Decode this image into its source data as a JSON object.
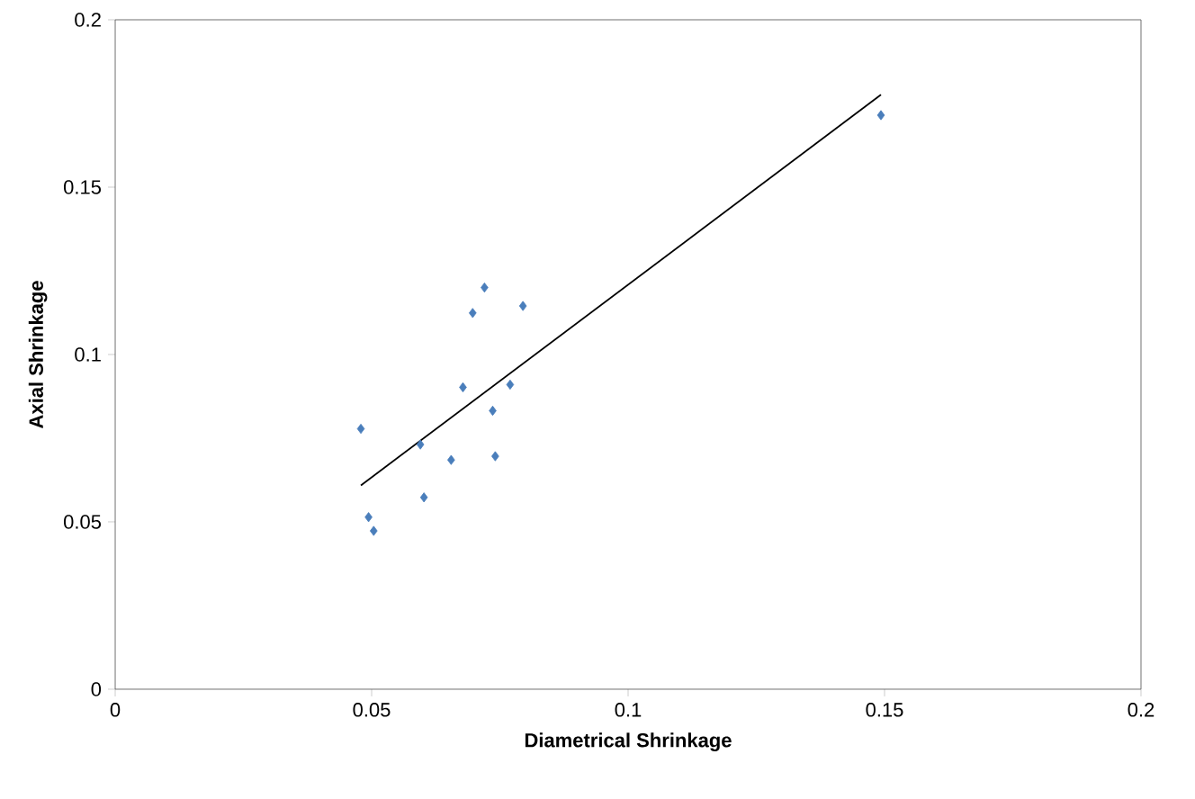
{
  "chart_data": {
    "type": "scatter",
    "xlabel": "Diametrical Shrinkage",
    "ylabel": "Axial Shrinkage",
    "xlim": [
      0,
      0.2
    ],
    "ylim": [
      0,
      0.2
    ],
    "xticks": [
      0,
      0.05,
      0.1,
      0.15,
      0.2
    ],
    "yticks": [
      0,
      0.05,
      0.1,
      0.15,
      0.2
    ],
    "grid": false,
    "series": [
      {
        "color": "#4a7ebb",
        "marker": "diamond",
        "x": [
          0.072,
          0.0697,
          0.0795,
          0.0678,
          0.077,
          0.0736,
          0.0479,
          0.0595,
          0.0655,
          0.0741,
          0.0602,
          0.0494,
          0.0504,
          0.1493
        ],
        "values": [
          0.12,
          0.1124,
          0.1145,
          0.0902,
          0.091,
          0.0832,
          0.0778,
          0.0731,
          0.0685,
          0.0696,
          0.0573,
          0.0514,
          0.0473,
          0.1715
        ]
      },
      {
        "type": "line",
        "color": "#000000",
        "marker": "none",
        "x": [
          0.0479,
          0.1493
        ],
        "values": [
          0.0609,
          0.1776
        ]
      }
    ]
  }
}
